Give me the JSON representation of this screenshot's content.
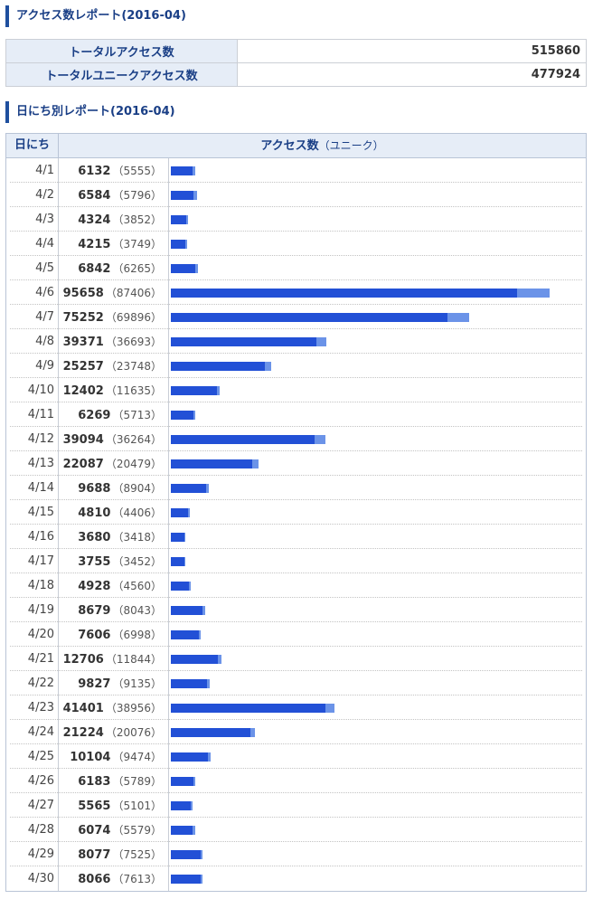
{
  "header": {
    "monthly_title": "アクセス数レポート(2016-04)",
    "daily_title": "日にち別レポート(2016-04)"
  },
  "summary": {
    "total_label": "トータルアクセス数",
    "total_value": "515860",
    "unique_label": "トータルユニークアクセス数",
    "unique_value": "477924"
  },
  "colors": {
    "total_bar": "#6b93e8",
    "unique_bar": "#2250d6",
    "accent": "#1f4f9e"
  },
  "chart_data": {
    "type": "bar",
    "orientation": "horizontal",
    "column_day": "日にち",
    "column_access": "アクセス数",
    "column_access_sub": "（ユニーク）",
    "categories": [
      "4/1",
      "4/2",
      "4/3",
      "4/4",
      "4/5",
      "4/6",
      "4/7",
      "4/8",
      "4/9",
      "4/10",
      "4/11",
      "4/12",
      "4/13",
      "4/14",
      "4/15",
      "4/16",
      "4/17",
      "4/18",
      "4/19",
      "4/20",
      "4/21",
      "4/22",
      "4/23",
      "4/24",
      "4/25",
      "4/26",
      "4/27",
      "4/28",
      "4/29",
      "4/30"
    ],
    "series": [
      {
        "values": [
          6132,
          6584,
          4324,
          4215,
          6842,
          95658,
          75252,
          39371,
          25257,
          12402,
          6269,
          39094,
          22087,
          9688,
          4810,
          3680,
          3755,
          4928,
          8679,
          7606,
          12706,
          9827,
          41401,
          21224,
          10104,
          6183,
          5565,
          6074,
          8077,
          8066
        ]
      },
      {
        "values": [
          5555,
          5796,
          3852,
          3749,
          6265,
          87406,
          69896,
          36693,
          23748,
          11635,
          5713,
          36264,
          20479,
          8904,
          4406,
          3418,
          3452,
          4560,
          8043,
          6998,
          11844,
          9135,
          38956,
          20076,
          9474,
          5789,
          5101,
          5579,
          7525,
          7613
        ]
      }
    ],
    "xlim": [
      0,
      100000
    ]
  }
}
